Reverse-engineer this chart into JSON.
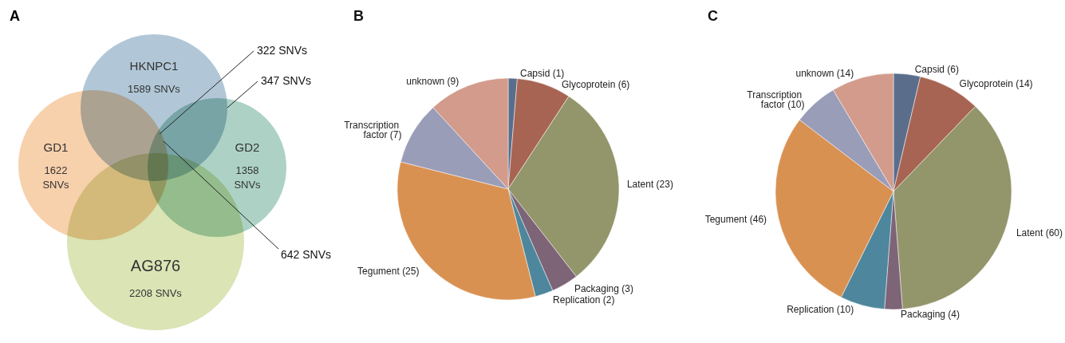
{
  "chart_data": [
    {
      "type": "other",
      "title": "A",
      "categories": [
        "HKNPC1",
        "GD1",
        "GD2",
        "AG876"
      ],
      "colors": [
        "#a3bdd0",
        "#f6c89e",
        "#9fcabb",
        "#d4dfa8"
      ],
      "annotations": [
        "1589 SNVs",
        "1622 SNVs",
        "1358 SNVs",
        "2208 SNVs",
        "322 SNVs",
        "347 SNVs",
        "642 SNVs"
      ]
    },
    {
      "type": "pie",
      "title": "B",
      "categories": [
        "Capsid",
        "Glycoprotein",
        "Latent",
        "Packaging",
        "Replication",
        "Tegument",
        "Transcription factor",
        "unknown"
      ],
      "values": [
        1,
        6,
        23,
        3,
        2,
        25,
        7,
        9
      ],
      "value_labels": [
        "(1)",
        "(6)",
        "(23)",
        "(3)",
        "(2)",
        "(25)",
        "(7)",
        "(9)"
      ],
      "colors": [
        "#5a6e8c",
        "#a86452",
        "#93956b",
        "#7d6476",
        "#4e879d",
        "#d99152",
        "#9a9db8",
        "#d29b8c"
      ],
      "legend": false
    },
    {
      "type": "pie",
      "title": "C",
      "categories": [
        "Capsid",
        "Glycoprotein",
        "Latent",
        "Packaging",
        "Replication",
        "Tegument",
        "Transcription factor",
        "unknown"
      ],
      "values": [
        6,
        14,
        60,
        4,
        10,
        46,
        10,
        14
      ],
      "value_labels": [
        "(6)",
        "(14)",
        "(60)",
        "(4)",
        "(10)",
        "(46)",
        "(10)",
        "(14)"
      ],
      "colors": [
        "#5a6e8c",
        "#a86452",
        "#93956b",
        "#7d6476",
        "#4e879d",
        "#d99152",
        "#9a9db8",
        "#d29b8c"
      ],
      "legend": false
    }
  ]
}
